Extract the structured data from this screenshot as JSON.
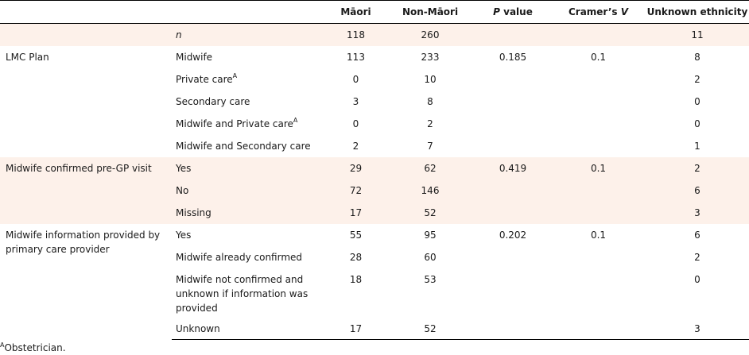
{
  "headers": {
    "maori": "Māori",
    "non_maori": "Non-Māori",
    "p_italic": "P",
    "p_rest": " value",
    "cramer_prefix": "Cramer’s ",
    "cramer_italic": "V",
    "unknown": "Unknown ethnicity"
  },
  "n_row": {
    "label": "n",
    "maori": "118",
    "non_maori": "260",
    "unknown": "11"
  },
  "lmc": {
    "group": "LMC Plan",
    "rows": [
      {
        "label": "Midwife",
        "maori": "113",
        "non_maori": "233",
        "p": "0.185",
        "v": "0.1",
        "unknown": "8"
      },
      {
        "label": "Private care",
        "sup": "A",
        "maori": "0",
        "non_maori": "10",
        "unknown": "2"
      },
      {
        "label": "Secondary care",
        "maori": "3",
        "non_maori": "8",
        "unknown": "0"
      },
      {
        "label": "Midwife and Private care",
        "sup": "A",
        "maori": "0",
        "non_maori": "2",
        "unknown": "0"
      },
      {
        "label": "Midwife and Secondary care",
        "maori": "2",
        "non_maori": "7",
        "unknown": "1"
      }
    ]
  },
  "confirmed": {
    "group": "Midwife confirmed pre-GP visit",
    "rows": [
      {
        "label": "Yes",
        "maori": "29",
        "non_maori": "62",
        "p": "0.419",
        "v": "0.1",
        "unknown": "2"
      },
      {
        "label": "No",
        "maori": "72",
        "non_maori": "146",
        "unknown": "6"
      },
      {
        "label": "Missing",
        "maori": "17",
        "non_maori": "52",
        "unknown": "3"
      }
    ]
  },
  "info": {
    "group": "Midwife information provided by primary care provider",
    "rows": [
      {
        "label": "Yes",
        "maori": "55",
        "non_maori": "95",
        "p": "0.202",
        "v": "0.1",
        "unknown": "6"
      },
      {
        "label": "Midwife already confirmed",
        "maori": "28",
        "non_maori": "60",
        "unknown": "2"
      },
      {
        "label": "Midwife not confirmed and unknown if information was provided",
        "maori": "18",
        "non_maori": "53",
        "unknown": "0"
      },
      {
        "label": "Unknown",
        "maori": "17",
        "non_maori": "52",
        "unknown": "3"
      }
    ]
  },
  "footnote": {
    "sup": "A",
    "text": "Obstetrician."
  }
}
